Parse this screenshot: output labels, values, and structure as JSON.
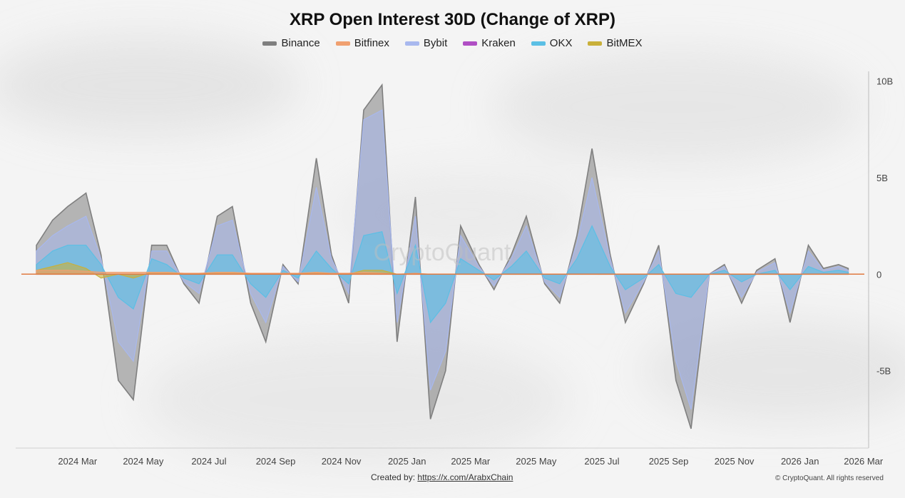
{
  "title": "XRP Open Interest 30D (Change of XRP)",
  "watermark": "CryptoQuant",
  "footer": {
    "created_by": "Created by:",
    "link": "https://x.com/ArabxChain",
    "copyright": "© CryptoQuant. All rights reserved"
  },
  "chart_data": {
    "type": "area",
    "title": "XRP Open Interest 30D (Change of XRP)",
    "xlabel": "",
    "ylabel": "",
    "legend_position": "top-center",
    "grid": false,
    "x_range": [
      "2024-02",
      "2026-03"
    ],
    "ylim": [
      -9,
      10.5
    ],
    "y_ticks": [
      {
        "value": 10,
        "label": "10B"
      },
      {
        "value": 5,
        "label": "5B"
      },
      {
        "value": 0,
        "label": "0"
      },
      {
        "value": -5,
        "label": "-5B"
      }
    ],
    "x_ticks": [
      {
        "value": "2024-03",
        "label": "2024 Mar"
      },
      {
        "value": "2024-05",
        "label": "2024 May"
      },
      {
        "value": "2024-07",
        "label": "2024 Jul"
      },
      {
        "value": "2024-09",
        "label": "2024 Sep"
      },
      {
        "value": "2024-11",
        "label": "2024 Nov"
      },
      {
        "value": "2025-01",
        "label": "2025 Jan"
      },
      {
        "value": "2025-03",
        "label": "2025 Mar"
      },
      {
        "value": "2025-05",
        "label": "2025 May"
      },
      {
        "value": "2025-07",
        "label": "2025 Jul"
      },
      {
        "value": "2025-09",
        "label": "2025 Sep"
      },
      {
        "value": "2025-11",
        "label": "2025 Nov"
      },
      {
        "value": "2026-01",
        "label": "2026 Jan"
      },
      {
        "value": "2026-03",
        "label": "2026 Mar"
      }
    ],
    "x": [
      "2024-02-15",
      "2024-03-01",
      "2024-03-15",
      "2024-04-01",
      "2024-04-15",
      "2024-05-01",
      "2024-05-15",
      "2024-06-01",
      "2024-06-15",
      "2024-07-01",
      "2024-07-15",
      "2024-08-01",
      "2024-08-15",
      "2024-09-01",
      "2024-09-15",
      "2024-10-01",
      "2024-10-15",
      "2024-11-01",
      "2024-11-15",
      "2024-12-01",
      "2024-12-15",
      "2025-01-01",
      "2025-01-15",
      "2025-02-01",
      "2025-02-15",
      "2025-03-01",
      "2025-03-15",
      "2025-04-01",
      "2025-04-15",
      "2025-05-01",
      "2025-05-15",
      "2025-06-01",
      "2025-06-15",
      "2025-07-01",
      "2025-07-15",
      "2025-08-01",
      "2025-08-15",
      "2025-09-01",
      "2025-09-15",
      "2025-10-01",
      "2025-10-15",
      "2025-11-01",
      "2025-11-15",
      "2025-12-01",
      "2025-12-15",
      "2026-01-01",
      "2026-01-15",
      "2026-02-01",
      "2026-02-15",
      "2026-03-01",
      "2026-03-10"
    ],
    "series": [
      {
        "name": "Binance",
        "color": "#7f7f7f",
        "values": [
          1.5,
          2.8,
          3.5,
          4.2,
          1.0,
          -5.5,
          -6.5,
          1.5,
          1.5,
          -0.5,
          -1.5,
          3.0,
          3.5,
          -1.5,
          -3.5,
          0.5,
          -0.5,
          6.0,
          1.0,
          -1.5,
          8.5,
          9.8,
          -3.5,
          4.0,
          -7.5,
          -5.0,
          2.5,
          0.5,
          -0.8,
          1.0,
          3.0,
          -0.5,
          -1.5,
          2.0,
          6.5,
          1.0,
          -2.5,
          -0.5,
          1.5,
          -5.5,
          -8.0,
          0.0,
          0.5,
          -1.5,
          0.2,
          0.8,
          -2.5,
          1.5,
          0.3,
          0.5,
          0.3
        ]
      },
      {
        "name": "Bybit",
        "color": "#a8b8ee",
        "values": [
          1.2,
          2.0,
          2.5,
          3.0,
          0.8,
          -3.5,
          -4.5,
          1.2,
          1.2,
          -0.4,
          -1.0,
          2.5,
          2.8,
          -1.0,
          -2.5,
          0.4,
          -0.4,
          4.5,
          0.8,
          -1.0,
          8.0,
          8.5,
          -2.5,
          3.0,
          -6.0,
          -4.0,
          2.0,
          0.4,
          -0.6,
          0.8,
          2.5,
          -0.4,
          -1.2,
          1.6,
          5.0,
          0.8,
          -2.0,
          -0.4,
          1.2,
          -4.5,
          -7.0,
          0.0,
          0.4,
          -1.2,
          0.1,
          0.6,
          -2.0,
          1.2,
          0.2,
          0.4,
          0.2
        ]
      },
      {
        "name": "OKX",
        "color": "#5bbfe5",
        "values": [
          0.5,
          1.2,
          1.5,
          1.5,
          0.5,
          -1.2,
          -1.8,
          0.8,
          0.5,
          -0.2,
          -0.5,
          1.0,
          1.0,
          -0.5,
          -1.2,
          0.2,
          -0.2,
          1.2,
          0.3,
          -0.5,
          2.0,
          2.2,
          -1.0,
          1.5,
          -2.5,
          -1.5,
          0.8,
          0.2,
          -0.3,
          0.4,
          1.2,
          -0.2,
          -0.5,
          0.8,
          2.5,
          0.4,
          -0.8,
          -0.2,
          0.5,
          -1.0,
          -1.2,
          0.0,
          0.2,
          -0.4,
          0.0,
          0.2,
          -0.8,
          0.4,
          0.1,
          0.2,
          0.1
        ]
      },
      {
        "name": "Bitfinex",
        "color": "#f0a070",
        "values": [
          0.2,
          0.2,
          0.2,
          0.15,
          0.1,
          0.1,
          0.1,
          0.1,
          0.1,
          0.05,
          0.05,
          0.1,
          0.1,
          0.05,
          0.05,
          0.05,
          0.05,
          0.1,
          0.05,
          0.05,
          0.1,
          0.05,
          0.0,
          0.05,
          0.0,
          0.0,
          0.0,
          0.0,
          0.0,
          0.0,
          0.0,
          0.0,
          0.0,
          0.0,
          0.0,
          0.0,
          0.0,
          0.0,
          0.0,
          0.0,
          0.0,
          0.0,
          0.0,
          0.0,
          0.0,
          0.0,
          0.0,
          0.0,
          0.0,
          0.0,
          0.0
        ]
      },
      {
        "name": "Kraken",
        "color": "#b04fc4",
        "values": [
          0.0,
          0.0,
          0.0,
          0.0,
          0.0,
          0.0,
          0.0,
          0.0,
          0.0,
          0.0,
          0.0,
          0.0,
          0.0,
          0.0,
          0.0,
          0.0,
          0.0,
          0.0,
          0.0,
          0.0,
          0.0,
          0.0,
          0.0,
          0.0,
          0.0,
          0.0,
          0.0,
          0.0,
          0.0,
          0.0,
          0.0,
          0.0,
          0.0,
          0.0,
          0.0,
          0.0,
          0.0,
          0.0,
          0.0,
          0.0,
          0.0,
          0.0,
          0.0,
          0.0,
          0.0,
          0.0,
          0.0,
          0.0,
          0.0,
          0.0,
          0.0
        ]
      },
      {
        "name": "BitMEX",
        "color": "#c9b03a",
        "values": [
          0.2,
          0.4,
          0.6,
          0.3,
          -0.2,
          0.0,
          -0.2,
          0.1,
          0.1,
          0.0,
          0.0,
          0.1,
          0.1,
          0.0,
          0.0,
          0.0,
          0.0,
          0.1,
          0.0,
          0.0,
          0.2,
          0.2,
          0.0,
          0.0,
          0.0,
          0.0,
          0.0,
          0.0,
          0.0,
          0.0,
          0.0,
          0.0,
          0.0,
          0.0,
          0.0,
          0.0,
          0.0,
          0.0,
          0.0,
          0.0,
          0.0,
          0.0,
          0.0,
          0.0,
          0.0,
          0.0,
          0.0,
          0.0,
          0.0,
          0.0,
          0.0
        ]
      }
    ]
  }
}
